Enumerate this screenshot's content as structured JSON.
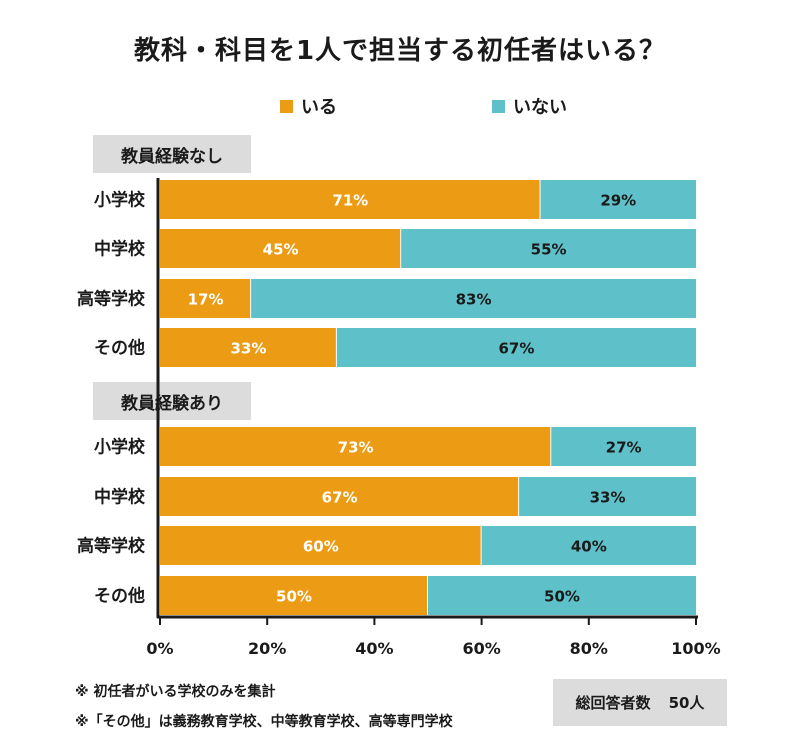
{
  "chart_data": {
    "type": "bar",
    "orientation": "horizontal-stacked-100",
    "title": "教科・科目を1人で担当する初任者はいる？",
    "legend": [
      {
        "name": "いる",
        "color": "#EC9C14"
      },
      {
        "name": "いない",
        "color": "#5EC0C8"
      }
    ],
    "groups": [
      {
        "label": "教員経験なし",
        "categories": [
          "小学校",
          "中学校",
          "高等学校",
          "その他"
        ],
        "series": [
          {
            "name": "いる",
            "values": [
              71,
              45,
              17,
              33
            ]
          },
          {
            "name": "いない",
            "values": [
              29,
              55,
              83,
              67
            ]
          }
        ]
      },
      {
        "label": "教員経験あり",
        "categories": [
          "小学校",
          "中学校",
          "高等学校",
          "その他"
        ],
        "series": [
          {
            "name": "いる",
            "values": [
              73,
              67,
              60,
              50
            ]
          },
          {
            "name": "いない",
            "values": [
              27,
              33,
              40,
              50
            ]
          }
        ]
      }
    ],
    "xlim": [
      0,
      100
    ],
    "xticks": [
      "0%",
      "20%",
      "40%",
      "60%",
      "80%",
      "100%"
    ],
    "value_suffix": "%",
    "grid": false
  },
  "notes": [
    "※ 初任者がいる学校のみを集計",
    "※「その他」は義務教育学校、中等教育学校、高等専門学校"
  ],
  "total": {
    "label": "総回答者数",
    "value": "50人"
  },
  "colors": {
    "yes": "#EC9C14",
    "no": "#5EC0C8",
    "label_bg": "#DCDCDC"
  }
}
